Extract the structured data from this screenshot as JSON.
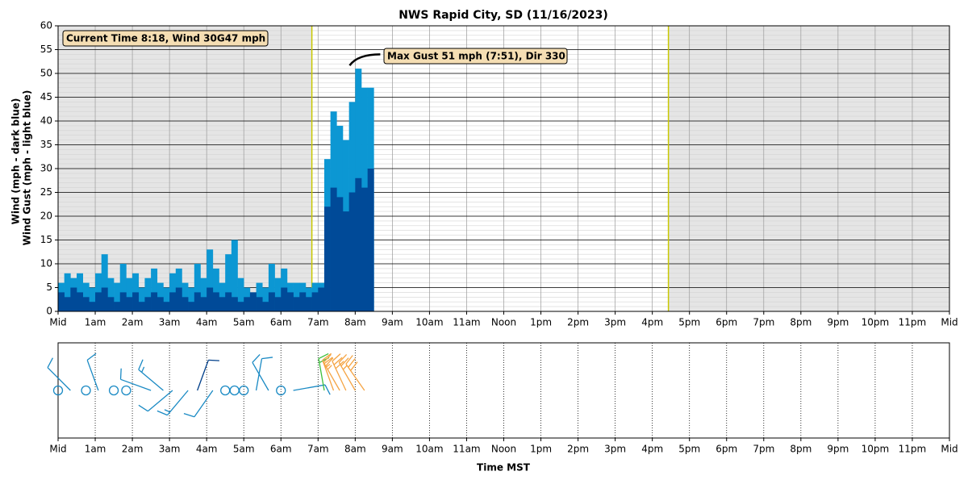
{
  "chart_data": {
    "type": "wind",
    "title": "NWS Rapid City, SD (11/16/2023)",
    "ylabel": [
      "Wind (mph - dark blue)",
      "Wind Gust (mph - light blue)"
    ],
    "xlabel": "Time MST",
    "annotations": {
      "current": "Current Time 8:18,  Wind 30G47 mph",
      "max_gust": "Max Gust 51 mph (7:51), Dir 330"
    },
    "max_gust_x": 471,
    "xlim": [
      0,
      1440
    ],
    "xticks": [
      {
        "value": 0,
        "label": "Mid"
      },
      {
        "value": 60,
        "label": "1am"
      },
      {
        "value": 120,
        "label": "2am"
      },
      {
        "value": 180,
        "label": "3am"
      },
      {
        "value": 240,
        "label": "4am"
      },
      {
        "value": 300,
        "label": "5am"
      },
      {
        "value": 360,
        "label": "6am"
      },
      {
        "value": 420,
        "label": "7am"
      },
      {
        "value": 480,
        "label": "8am"
      },
      {
        "value": 540,
        "label": "9am"
      },
      {
        "value": 600,
        "label": "10am"
      },
      {
        "value": 660,
        "label": "11am"
      },
      {
        "value": 720,
        "label": "Noon"
      },
      {
        "value": 780,
        "label": "1pm"
      },
      {
        "value": 840,
        "label": "2pm"
      },
      {
        "value": 900,
        "label": "3pm"
      },
      {
        "value": 960,
        "label": "4pm"
      },
      {
        "value": 1020,
        "label": "5pm"
      },
      {
        "value": 1080,
        "label": "6pm"
      },
      {
        "value": 1140,
        "label": "7pm"
      },
      {
        "value": 1200,
        "label": "8pm"
      },
      {
        "value": 1260,
        "label": "9pm"
      },
      {
        "value": 1320,
        "label": "10pm"
      },
      {
        "value": 1380,
        "label": "11pm"
      },
      {
        "value": 1440,
        "label": "Mid"
      }
    ],
    "ylim": [
      0,
      60
    ],
    "yticks": [
      0,
      5,
      10,
      15,
      20,
      25,
      30,
      35,
      40,
      45,
      50,
      55,
      60
    ],
    "minor_ystep": 1,
    "grid": true,
    "night": [
      [
        0,
        410
      ],
      [
        986,
        1440
      ]
    ],
    "night_color": "#e5e5e5",
    "sun_line_color": "#c8c800",
    "x": [
      0,
      10,
      20,
      30,
      40,
      50,
      60,
      70,
      80,
      90,
      100,
      110,
      120,
      130,
      140,
      150,
      160,
      170,
      180,
      190,
      200,
      210,
      220,
      230,
      240,
      250,
      260,
      270,
      280,
      290,
      300,
      310,
      320,
      330,
      340,
      350,
      360,
      370,
      380,
      390,
      400,
      410,
      420,
      430,
      440,
      450,
      460,
      470,
      480,
      490,
      500
    ],
    "series": [
      {
        "name": "Wind Gust",
        "color": "#0c97d3",
        "values": [
          6,
          8,
          7,
          8,
          6,
          5,
          8,
          12,
          7,
          6,
          10,
          7,
          8,
          5,
          7,
          9,
          6,
          5,
          8,
          9,
          6,
          5,
          10,
          7,
          13,
          9,
          6,
          12,
          15,
          7,
          5,
          4,
          6,
          5,
          10,
          7,
          9,
          6,
          6,
          6,
          5,
          6,
          6,
          32,
          42,
          39,
          36,
          44,
          51,
          47,
          47
        ]
      },
      {
        "name": "Wind",
        "color": "#004a98",
        "values": [
          4,
          3,
          5,
          4,
          3,
          2,
          4,
          5,
          3,
          2,
          4,
          3,
          4,
          2,
          3,
          4,
          3,
          2,
          4,
          5,
          3,
          2,
          4,
          3,
          5,
          4,
          3,
          4,
          3,
          2,
          3,
          4,
          3,
          2,
          4,
          3,
          5,
          4,
          3,
          4,
          3,
          4,
          5,
          22,
          26,
          24,
          21,
          25,
          28,
          26,
          30
        ]
      }
    ],
    "barbs": [
      {
        "x": 0,
        "dir": 0,
        "speed": 0,
        "color": "#1a8ac4"
      },
      {
        "x": 20,
        "dir": 315,
        "speed": 10,
        "color": "#1a8ac4"
      },
      {
        "x": 45,
        "dir": 0,
        "speed": 0,
        "color": "#1a8ac4"
      },
      {
        "x": 65,
        "dir": 340,
        "speed": 10,
        "color": "#1a8ac4"
      },
      {
        "x": 90,
        "dir": 0,
        "speed": 0,
        "color": "#1a8ac4"
      },
      {
        "x": 110,
        "dir": 0,
        "speed": 0,
        "color": "#1a8ac4"
      },
      {
        "x": 150,
        "dir": 290,
        "speed": 10,
        "color": "#1a8ac4"
      },
      {
        "x": 170,
        "dir": 310,
        "speed": 15,
        "color": "#1a8ac4"
      },
      {
        "x": 185,
        "dir": 230,
        "speed": 10,
        "color": "#1a8ac4"
      },
      {
        "x": 210,
        "dir": 220,
        "speed": 15,
        "color": "#1a8ac4"
      },
      {
        "x": 225,
        "dir": 20,
        "speed": 10,
        "color": "#003f8a"
      },
      {
        "x": 250,
        "dir": 215,
        "speed": 10,
        "color": "#1a8ac4"
      },
      {
        "x": 270,
        "dir": 0,
        "speed": 0,
        "color": "#1a8ac4"
      },
      {
        "x": 285,
        "dir": 0,
        "speed": 0,
        "color": "#1a8ac4"
      },
      {
        "x": 300,
        "dir": 0,
        "speed": 0,
        "color": "#1a8ac4"
      },
      {
        "x": 320,
        "dir": 10,
        "speed": 10,
        "color": "#1a8ac4"
      },
      {
        "x": 340,
        "dir": 330,
        "speed": 10,
        "color": "#1a8ac4"
      },
      {
        "x": 360,
        "dir": 0,
        "speed": 0,
        "color": "#1a8ac4"
      },
      {
        "x": 380,
        "dir": 80,
        "speed": 10,
        "color": "#1a8ac4"
      },
      {
        "x": 430,
        "dir": 350,
        "speed": 20,
        "color": "#3cbf3c"
      },
      {
        "x": 445,
        "dir": 340,
        "speed": 25,
        "color": "#f5a443"
      },
      {
        "x": 455,
        "dir": 330,
        "speed": 25,
        "color": "#f5a443"
      },
      {
        "x": 465,
        "dir": 335,
        "speed": 30,
        "color": "#f5a443"
      },
      {
        "x": 480,
        "dir": 330,
        "speed": 25,
        "color": "#f5a443"
      },
      {
        "x": 495,
        "dir": 325,
        "speed": 30,
        "color": "#f5a443"
      }
    ]
  }
}
